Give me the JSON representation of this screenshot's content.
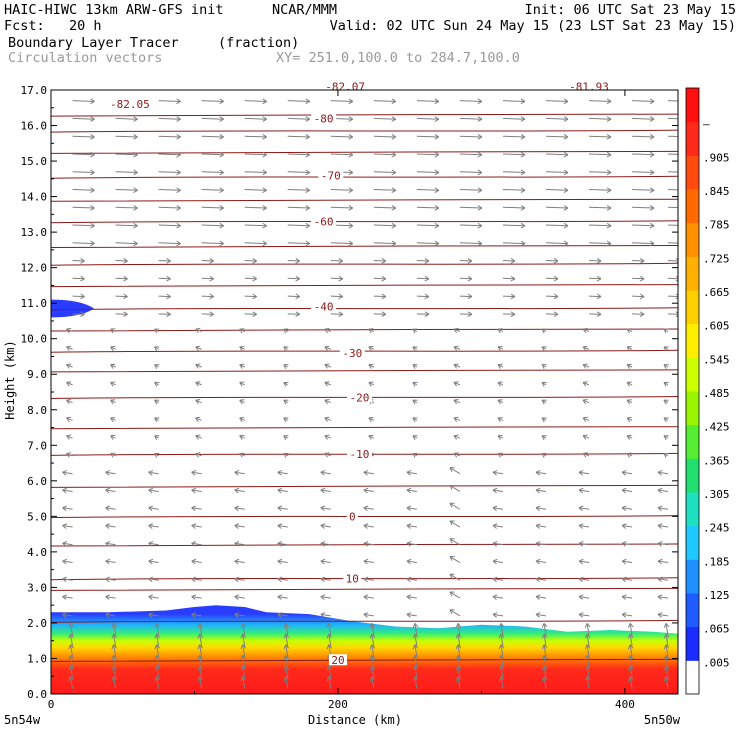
{
  "header": {
    "model": "HAIC-HIWC 13km ARW-GFS init",
    "org": "NCAR/MMM",
    "init": "Init: 06 UTC Sat 23 May 15",
    "fcst": "Fcst:   20 h",
    "valid": "Valid: 02 UTC Sun 24 May 15 (23 LST Sat 23 May 15)",
    "field": "Boundary Layer Tracer",
    "units": "(fraction)",
    "vectors": "Circulation vectors",
    "xy": "XY= 251.0,100.0 to 284.7,100.0"
  },
  "colors": {
    "contour": "#8b1a1a",
    "vector": "#7f7f7f",
    "fill_stops": [
      "#ffffff",
      "#2a3cff",
      "#1fb4ff",
      "#33ee77",
      "#c8ff00",
      "#ffd700",
      "#ff8c00",
      "#ff1a1a"
    ]
  },
  "chart_data": {
    "type": "heatmap",
    "title": "Boundary Layer Tracer",
    "xlabel": "Distance (km)",
    "ylabel": "Height (km)",
    "xlim": [
      0,
      437
    ],
    "ylim": [
      0,
      17
    ],
    "x_ticks": [
      "0",
      "200",
      "400"
    ],
    "x_end_labels": {
      "left": "5n54w",
      "right": "5n50w"
    },
    "y_ticks": [
      "0.0",
      "1.0",
      "2.0",
      "3.0",
      "4.0",
      "5.0",
      "6.0",
      "7.0",
      "8.0",
      "9.0",
      "10.0",
      "11.0",
      "12.0",
      "13.0",
      "14.0",
      "15.0",
      "16.0",
      "17.0"
    ],
    "colorbar": {
      "labels": [
        ".005",
        ".065",
        ".125",
        ".185",
        ".245",
        ".305",
        ".365",
        ".425",
        ".485",
        ".545",
        ".605",
        ".665",
        ".725",
        ".785",
        ".845",
        ".905",
        "–"
      ],
      "range": [
        0.0,
        1.0
      ]
    },
    "tracer_top_km": {
      "x": [
        0,
        40,
        80,
        100,
        115,
        135,
        150,
        180,
        210,
        240,
        270,
        300,
        330,
        360,
        390,
        420,
        437
      ],
      "y": [
        2.3,
        2.3,
        2.35,
        2.45,
        2.5,
        2.45,
        2.3,
        2.25,
        2.05,
        1.9,
        1.85,
        1.95,
        1.9,
        1.75,
        1.8,
        1.75,
        1.7
      ]
    },
    "tracer_upper_blob": {
      "x_end": 30,
      "y_center": 10.85,
      "half_height": 0.25
    },
    "contour_labels": [
      {
        "text": "20",
        "x": 200,
        "y": 0.95
      },
      {
        "text": "10",
        "x": 210,
        "y": 3.25
      },
      {
        "text": "0",
        "x": 210,
        "y": 5.0
      },
      {
        "text": "-10",
        "x": 215,
        "y": 6.75
      },
      {
        "text": "-20",
        "x": 215,
        "y": 8.35
      },
      {
        "text": "-30",
        "x": 210,
        "y": 9.6
      },
      {
        "text": "-40",
        "x": 190,
        "y": 10.9
      },
      {
        "text": "-60",
        "x": 190,
        "y": 13.3
      },
      {
        "text": "-70",
        "x": 195,
        "y": 14.6
      },
      {
        "text": "-80",
        "x": 190,
        "y": 16.2
      },
      {
        "text": "-82.05",
        "x": 55,
        "y": 16.6
      },
      {
        "text": "-82.07",
        "x": 205,
        "y": 17.1
      },
      {
        "text": "-81.93",
        "x": 375,
        "y": 17.1
      }
    ],
    "contour_levels_km": [
      0.95,
      2.05,
      2.95,
      3.25,
      4.2,
      5.0,
      5.85,
      6.75,
      7.5,
      8.35,
      9.1,
      9.65,
      10.25,
      10.85,
      11.5,
      12.1,
      12.6,
      13.3,
      13.9,
      14.55,
      15.25,
      15.85,
      16.3
    ],
    "vector_field": {
      "rows_km": [
        0.15,
        0.45,
        0.75,
        1.05,
        1.35,
        1.65,
        2.2,
        2.7,
        3.2,
        3.7,
        4.2,
        4.7,
        5.2,
        5.7,
        6.2,
        6.7,
        7.2,
        7.7,
        8.2,
        8.7,
        9.2,
        9.7,
        10.2,
        10.7,
        11.2,
        11.7,
        12.2,
        12.7,
        13.2,
        13.7,
        14.2,
        14.7,
        15.2,
        15.7,
        16.2,
        16.7
      ],
      "cols_km": [
        15,
        45,
        75,
        105,
        135,
        165,
        195,
        225,
        255,
        285,
        315,
        345,
        375,
        405,
        430
      ]
    }
  }
}
